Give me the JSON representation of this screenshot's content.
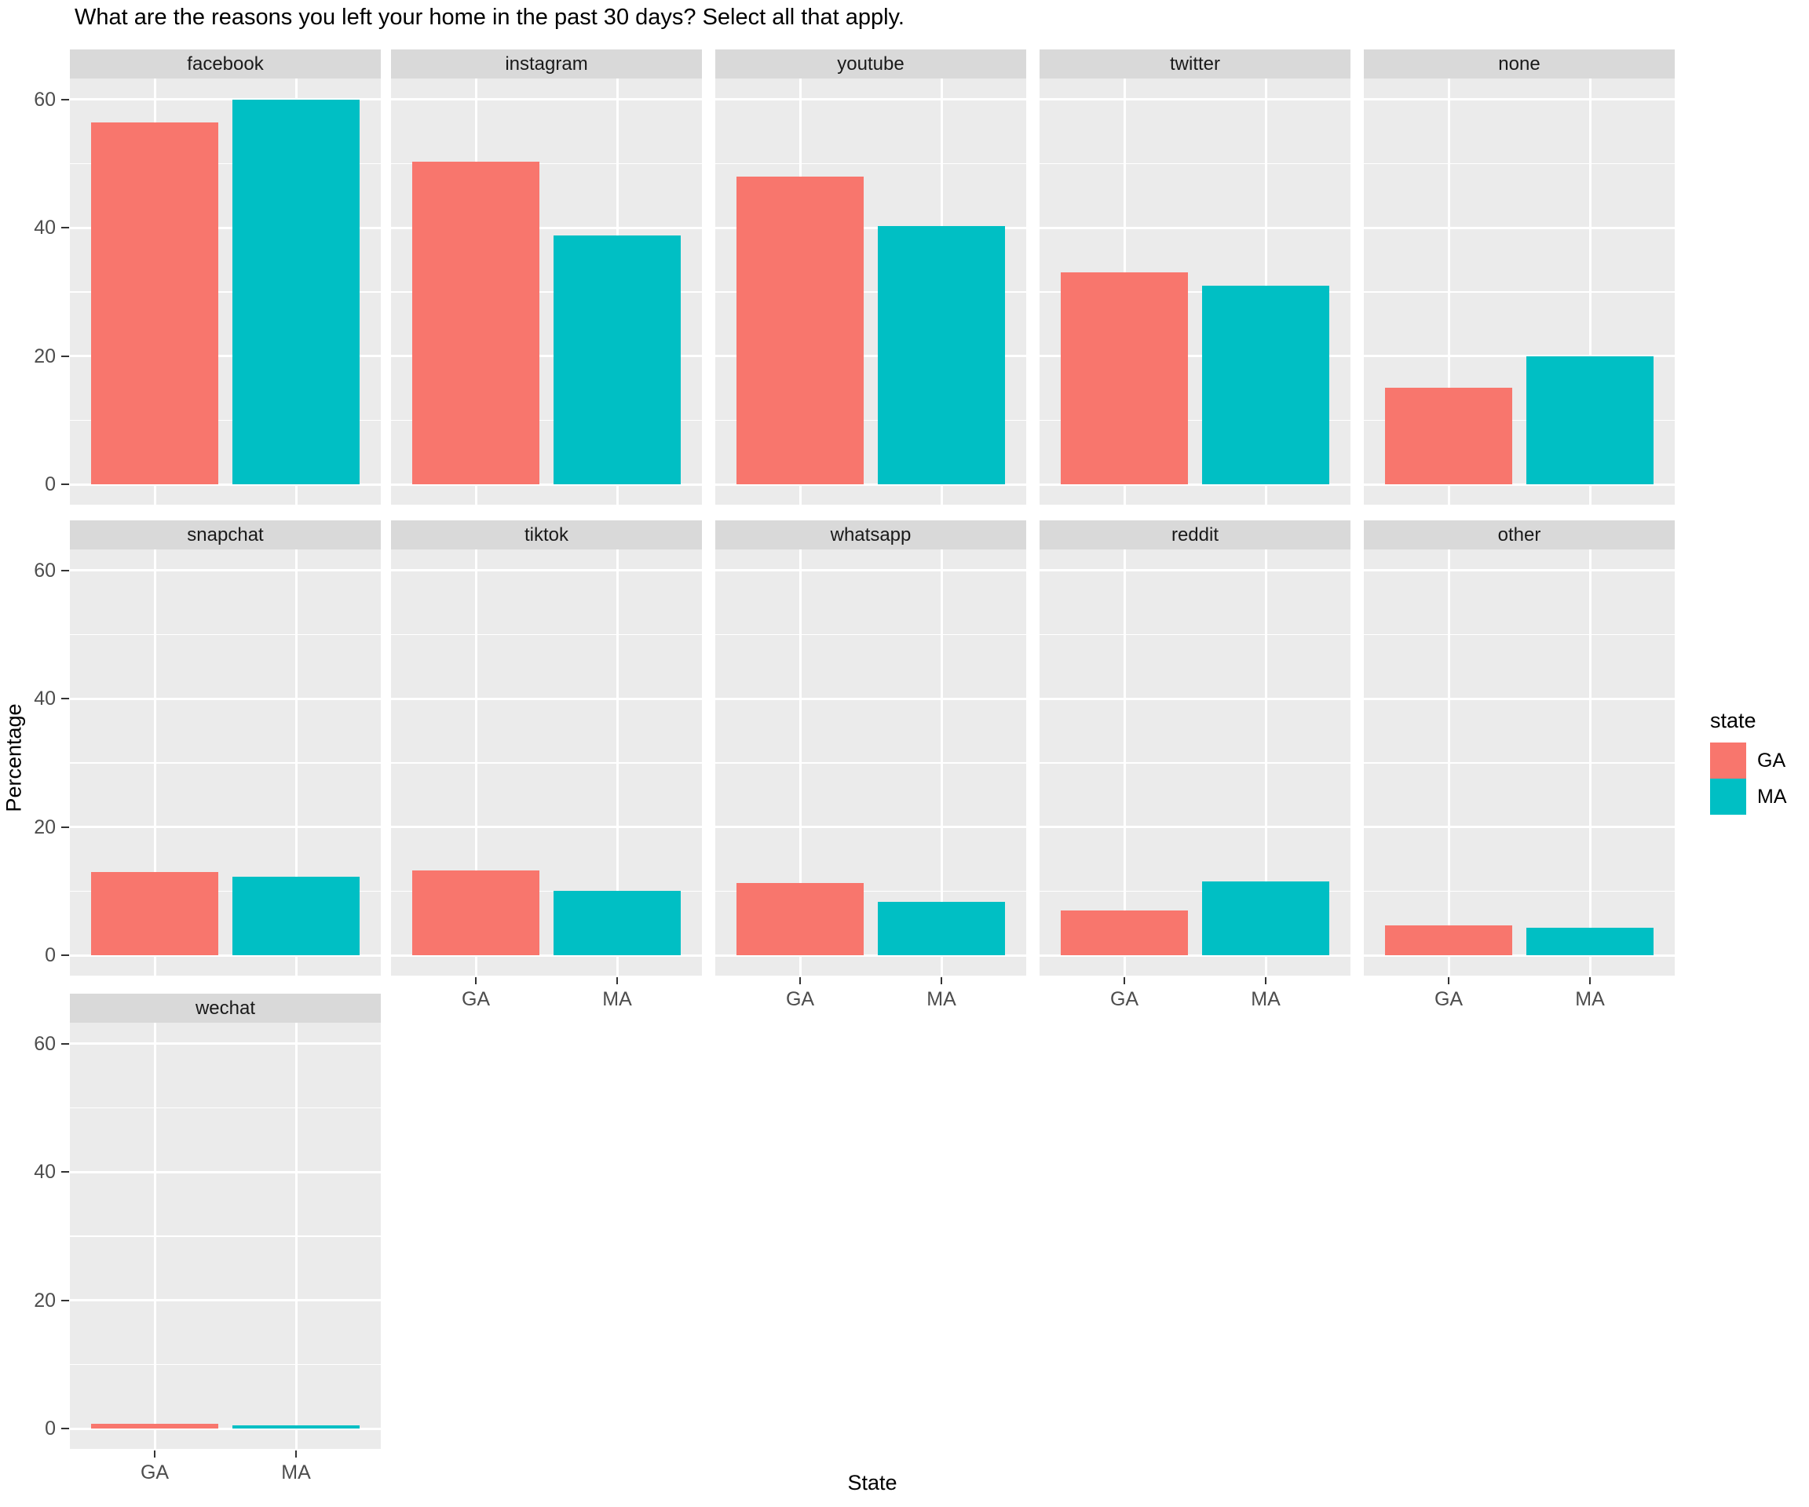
{
  "title": "What are the reasons you left your home in the past 30 days? Select all that apply.",
  "chart_data": {
    "type": "bar",
    "faceted": true,
    "title": "What are the reasons you left your home in the past 30 days? Select all that apply.",
    "xlabel": "State",
    "ylabel": "Percentage",
    "ylim": [
      0,
      60
    ],
    "yticks": [
      0,
      20,
      40,
      60
    ],
    "yticks_minor": [
      10,
      30,
      50
    ],
    "categories": [
      "GA",
      "MA"
    ],
    "series_colors": {
      "GA": "#F8766D",
      "MA": "#00BFC4"
    },
    "panel_background": "#EBEBEB",
    "strip_background": "#D9D9D9",
    "grid": true,
    "facets": [
      {
        "label": "facebook",
        "values": {
          "GA": 56.5,
          "MA": 60.0
        }
      },
      {
        "label": "instagram",
        "values": {
          "GA": 50.3,
          "MA": 38.8
        }
      },
      {
        "label": "youtube",
        "values": {
          "GA": 48.0,
          "MA": 40.3
        }
      },
      {
        "label": "twitter",
        "values": {
          "GA": 33.0,
          "MA": 31.0
        }
      },
      {
        "label": "none",
        "values": {
          "GA": 15.0,
          "MA": 20.0
        }
      },
      {
        "label": "snapchat",
        "values": {
          "GA": 13.0,
          "MA": 12.3
        }
      },
      {
        "label": "tiktok",
        "values": {
          "GA": 13.2,
          "MA": 10.0
        }
      },
      {
        "label": "whatsapp",
        "values": {
          "GA": 11.3,
          "MA": 8.3
        }
      },
      {
        "label": "reddit",
        "values": {
          "GA": 7.0,
          "MA": 11.5
        }
      },
      {
        "label": "other",
        "values": {
          "GA": 4.7,
          "MA": 4.3
        }
      },
      {
        "label": "wechat",
        "values": {
          "GA": 0.7,
          "MA": 0.5
        }
      }
    ],
    "legend": {
      "title": "state",
      "position": "right",
      "entries": [
        {
          "label": "GA",
          "color": "#F8766D"
        },
        {
          "label": "MA",
          "color": "#00BFC4"
        }
      ]
    }
  }
}
